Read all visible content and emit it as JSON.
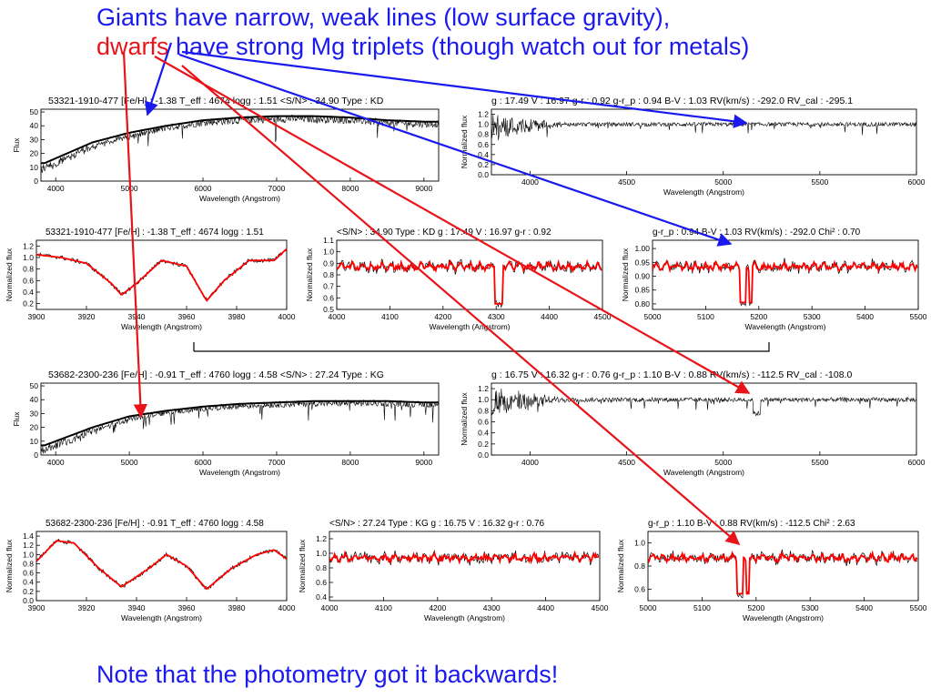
{
  "headline": {
    "line1": "Giants have narrow, weak lines (low surface gravity),",
    "line2_red": "dwarfs",
    "line2_rest": " have strong Mg triplets (though watch out for metals)"
  },
  "footnote": "Note that the photometry got it backwards!",
  "colors": {
    "arrow_blue": "#1a1aee",
    "arrow_red": "#e8141a",
    "model_red": "#ff0000"
  },
  "panels": [
    {
      "id": "g-full",
      "title": "53321-1910-477  [Fe/H] : -1.38  T_eff : 4674  logg : 1.51  <S/N> : 34.90  Type : KD",
      "xlabel": "Wavelength (Angstrom)",
      "ylabel": "Flux",
      "xticks": [
        "4000",
        "5000",
        "6000",
        "7000",
        "8000",
        "9000"
      ],
      "yticks": [
        "0",
        "10",
        "20",
        "30",
        "40",
        "50"
      ]
    },
    {
      "id": "g-norm",
      "title": "g : 17.49  V : 16.97  g-r : 0.92  g-r_p : 0.94  B-V : 1.03  RV(km/s) : -292.0  RV_cal : -295.1",
      "xlabel": "Wavelength (Angstrom)",
      "ylabel": "Normalized flux",
      "xticks": [
        "4000",
        "4500",
        "5000",
        "5500",
        "6000"
      ],
      "yticks": [
        "0.0",
        "0.2",
        "0.4",
        "0.6",
        "0.8",
        "1.0",
        "1.2"
      ]
    },
    {
      "id": "g-z1",
      "title": "53321-1910-477  [Fe/H] : -1.38  T_eff : 4674  logg : 1.51",
      "xlabel": "Wavelength (Angstrom)",
      "ylabel": "Normalized flux",
      "xticks": [
        "3900",
        "3920",
        "3940",
        "3960",
        "3980",
        "4000"
      ],
      "yticks": [
        "0.2",
        "0.4",
        "0.6",
        "0.8",
        "1.0",
        "1.2"
      ]
    },
    {
      "id": "g-z2",
      "title": "<S/N> : 34.90  Type : KD  g : 17.49  V : 16.97  g-r : 0.92",
      "xlabel": "Wavelength (Angstrom)",
      "ylabel": "Normalized flux",
      "xticks": [
        "4000",
        "4100",
        "4200",
        "4300",
        "4400",
        "4500"
      ],
      "yticks": [
        "0.5",
        "0.6",
        "0.7",
        "0.8",
        "0.9",
        "1.0",
        "1.1"
      ]
    },
    {
      "id": "g-z3",
      "title": "g-r_p : 0.94  B-V : 1.03  RV(km/s) : -292.0  Chi^2 : 0.70",
      "xlabel": "Wavelength (Angstrom)",
      "ylabel": "Normalized flux",
      "xticks": [
        "5000",
        "5100",
        "5200",
        "5300",
        "5400",
        "5500"
      ],
      "yticks": [
        "0.80",
        "0.85",
        "0.90",
        "0.95",
        "1.00"
      ]
    },
    {
      "id": "d-full",
      "title": "53682-2300-236  [Fe/H] : -0.91  T_eff : 4760  logg : 4.58  <S/N> : 27.24  Type : KG",
      "xlabel": "Wavelength (Angstrom)",
      "ylabel": "Flux",
      "xticks": [
        "4000",
        "5000",
        "6000",
        "7000",
        "8000",
        "9000"
      ],
      "yticks": [
        "0",
        "10",
        "20",
        "30",
        "40",
        "50"
      ]
    },
    {
      "id": "d-norm",
      "title": "g : 16.75  V : 16.32  g-r : 0.76  g-r_p : 1.10  B-V : 0.88  RV(km/s) : -112.5  RV_cal : -108.0",
      "xlabel": "Wavelength (Angstrom)",
      "ylabel": "Normalized flux",
      "xticks": [
        "4000",
        "4500",
        "5000",
        "5500",
        "6000"
      ],
      "yticks": [
        "0.0",
        "0.2",
        "0.4",
        "0.6",
        "0.8",
        "1.0",
        "1.2"
      ]
    },
    {
      "id": "d-z1",
      "title": "53682-2300-236  [Fe/H] : -0.91  T_eff : 4760  logg : 4.58",
      "xlabel": "Wavelength (Angstrom)",
      "ylabel": "Normalized flux",
      "xticks": [
        "3900",
        "3920",
        "3940",
        "3960",
        "3980",
        "4000"
      ],
      "yticks": [
        "0.0",
        "0.2",
        "0.4",
        "0.6",
        "0.8",
        "1.0",
        "1.2",
        "1.4"
      ]
    },
    {
      "id": "d-z2",
      "title": "<S/N> : 27.24  Type : KG  g : 16.75  V : 16.32  g-r : 0.76",
      "xlabel": "Wavelength (Angstrom)",
      "ylabel": "Normalized flux",
      "xticks": [
        "4000",
        "4100",
        "4200",
        "4300",
        "4400",
        "4500"
      ],
      "yticks": [
        "0.4",
        "0.6",
        "0.8",
        "1.0",
        "1.2"
      ]
    },
    {
      "id": "d-z3",
      "title": "g-r_p : 1.10  B-V : 0.88  RV(km/s) : -112.5  Chi^2 : 2.63",
      "xlabel": "Wavelength (Angstrom)",
      "ylabel": "Normalized flux",
      "xticks": [
        "5000",
        "5100",
        "5200",
        "5300",
        "5400",
        "5500"
      ],
      "yticks": [
        "0.6",
        "0.8",
        "1.0"
      ]
    }
  ],
  "chart_data": [
    {
      "type": "line",
      "panel": "g-full",
      "xlim": [
        3800,
        9200
      ],
      "ylim": [
        0,
        52
      ],
      "series": [
        {
          "role": "smooth continuum",
          "color": "#000000"
        },
        {
          "role": "observed spectrum",
          "color": "#000000"
        }
      ],
      "continuum_points": {
        "x": [
          3850,
          4500,
          5000,
          5500,
          6000,
          6500,
          7000,
          7500,
          8000,
          8500,
          9000
        ],
        "y": [
          13,
          28,
          35,
          40,
          44,
          46,
          47,
          47,
          46,
          44,
          43
        ]
      }
    },
    {
      "type": "line",
      "panel": "g-norm",
      "xlim": [
        3800,
        6000
      ],
      "ylim": [
        0,
        1.3
      ],
      "typical_level": 1.0
    },
    {
      "type": "line",
      "panel": "g-z1",
      "xlim": [
        3900,
        4000
      ],
      "ylim": [
        0.1,
        1.3
      ],
      "series": [
        {
          "role": "observed",
          "color": "#000000"
        },
        {
          "role": "model",
          "color": "#ff0000"
        }
      ],
      "model_points": {
        "x": [
          3900,
          3910,
          3920,
          3930,
          3934,
          3940,
          3950,
          3960,
          3968,
          3975,
          3985,
          3995,
          4000
        ],
        "y": [
          1.05,
          1.0,
          0.9,
          0.55,
          0.35,
          0.55,
          0.95,
          0.85,
          0.25,
          0.6,
          0.95,
          0.95,
          1.15
        ]
      }
    },
    {
      "type": "line",
      "panel": "g-z2",
      "xlim": [
        4000,
        4500
      ],
      "ylim": [
        0.5,
        1.1
      ],
      "series": [
        {
          "role": "observed",
          "color": "#000000"
        },
        {
          "role": "model",
          "color": "#ff0000"
        }
      ],
      "notable_dip_x": 4305
    },
    {
      "type": "line",
      "panel": "g-z3",
      "xlim": [
        5000,
        5500
      ],
      "ylim": [
        0.78,
        1.03
      ],
      "series": [
        {
          "role": "observed",
          "color": "#000000"
        },
        {
          "role": "model",
          "color": "#ff0000"
        }
      ],
      "notable_dips_x": [
        5167,
        5173,
        5184
      ]
    },
    {
      "type": "line",
      "panel": "d-full",
      "xlim": [
        3800,
        9200
      ],
      "ylim": [
        0,
        52
      ],
      "series": [
        {
          "role": "smooth continuum",
          "color": "#000000"
        },
        {
          "role": "observed spectrum",
          "color": "#000000"
        }
      ],
      "continuum_points": {
        "x": [
          3850,
          4500,
          5000,
          5500,
          6000,
          6500,
          7000,
          7500,
          8000,
          8500,
          9000
        ],
        "y": [
          7,
          20,
          28,
          32,
          35,
          37,
          38,
          39,
          39,
          39,
          38
        ]
      }
    },
    {
      "type": "line",
      "panel": "d-norm",
      "xlim": [
        3800,
        6000
      ],
      "ylim": [
        0,
        1.3
      ],
      "typical_level": 1.0,
      "notable_dip_x": 5175
    },
    {
      "type": "line",
      "panel": "d-z1",
      "xlim": [
        3900,
        4000
      ],
      "ylim": [
        0,
        1.5
      ],
      "series": [
        {
          "role": "observed",
          "color": "#000000"
        },
        {
          "role": "model",
          "color": "#ff0000"
        }
      ],
      "model_points": {
        "x": [
          3900,
          3908,
          3915,
          3925,
          3934,
          3945,
          3952,
          3960,
          3968,
          3978,
          3988,
          3995,
          4000
        ],
        "y": [
          0.85,
          1.3,
          1.25,
          0.7,
          0.3,
          0.7,
          1.0,
          0.75,
          0.25,
          0.7,
          1.0,
          1.1,
          0.9
        ]
      }
    },
    {
      "type": "line",
      "panel": "d-z2",
      "xlim": [
        4000,
        4500
      ],
      "ylim": [
        0.35,
        1.3
      ],
      "series": [
        {
          "role": "observed",
          "color": "#000000"
        },
        {
          "role": "model",
          "color": "#ff0000"
        }
      ]
    },
    {
      "type": "line",
      "panel": "d-z3",
      "xlim": [
        5000,
        5500
      ],
      "ylim": [
        0.5,
        1.1
      ],
      "series": [
        {
          "role": "observed",
          "color": "#000000"
        },
        {
          "role": "model",
          "color": "#ff0000"
        }
      ],
      "notable_dips_x": [
        5167,
        5173,
        5184
      ]
    }
  ]
}
